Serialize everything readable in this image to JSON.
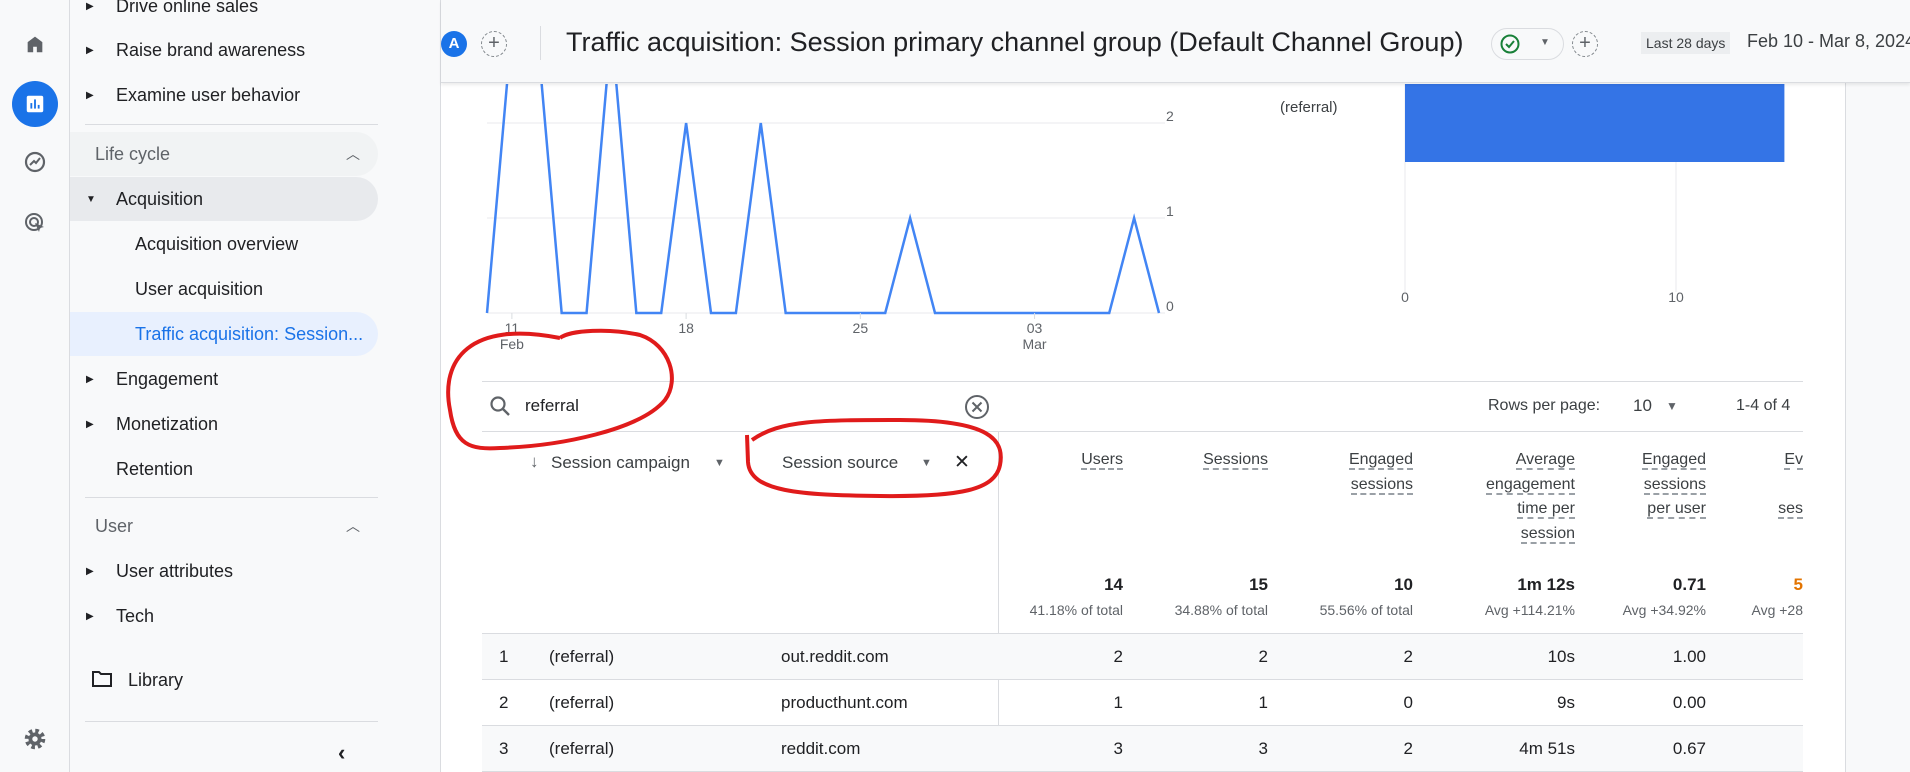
{
  "rail": {
    "icons": [
      "home-icon",
      "reports-icon",
      "explore-icon",
      "advertising-icon",
      "settings-icon"
    ],
    "accent": "#1a73e8"
  },
  "sidebar": {
    "items_top": [
      {
        "label": "Drive online sales"
      },
      {
        "label": "Raise brand awareness"
      },
      {
        "label": "Examine user behavior"
      }
    ],
    "lifecycle": {
      "label": "Life cycle",
      "acquisition": "Acquisition",
      "sub": [
        "Acquisition overview",
        "User acquisition",
        "Traffic acquisition: Session..."
      ],
      "items": [
        "Engagement",
        "Monetization"
      ],
      "retention": "Retention"
    },
    "user": {
      "label": "User",
      "items": [
        "User attributes",
        "Tech"
      ]
    },
    "library": "Library"
  },
  "header": {
    "avatar": "A",
    "title": "Traffic acquisition: Session primary channel group (Default Channel Group)",
    "date_chip": "Last 28 days",
    "date_range": "Feb 10 - Mar 8, 2024"
  },
  "chart_data": [
    {
      "type": "line",
      "x_start": "2024-02-10",
      "x_end": "2024-03-08",
      "values": [
        0,
        3,
        3,
        0,
        0,
        3,
        0,
        0,
        2,
        0,
        0,
        2,
        0,
        0,
        0,
        0,
        0,
        1,
        0,
        0,
        0,
        0,
        0,
        0,
        0,
        0,
        1,
        0
      ],
      "x_ticks": [
        {
          "day": 1,
          "label": "11",
          "sub": "Feb"
        },
        {
          "day": 8,
          "label": "18"
        },
        {
          "day": 15,
          "label": "25"
        },
        {
          "day": 22,
          "label": "03",
          "sub": "Mar"
        }
      ],
      "y_ticks": [
        "0",
        "1",
        "2"
      ],
      "ylim_visible": [
        0,
        2.4
      ],
      "color": "#4285f4",
      "grid": true
    },
    {
      "type": "bar",
      "orientation": "horizontal",
      "categories": [
        "(referral)"
      ],
      "values": [
        14
      ],
      "x_ticks": [
        "0",
        "10"
      ],
      "color": "#3474e6",
      "grid": true
    }
  ],
  "table": {
    "search_value": "referral",
    "rows_per_page_label": "Rows per page:",
    "rows_per_page": "10",
    "pagination": "1-4 of 4",
    "dimensions": [
      "Session campaign",
      "Session source"
    ],
    "metrics": [
      {
        "lines": [
          "Users"
        ],
        "total": "14",
        "sub": "41.18% of total"
      },
      {
        "lines": [
          "Sessions"
        ],
        "total": "15",
        "sub": "34.88% of total"
      },
      {
        "lines": [
          "Engaged",
          "sessions"
        ],
        "total": "10",
        "sub": "55.56% of total"
      },
      {
        "lines": [
          "Average",
          "engagement",
          "time per",
          "session"
        ],
        "total": "1m 12s",
        "sub": "Avg +114.21%"
      },
      {
        "lines": [
          "Engaged",
          "sessions",
          "per user"
        ],
        "total": "0.71",
        "sub": "Avg +34.92%"
      },
      {
        "lines": [
          "Ev",
          "",
          "ses"
        ],
        "total": "5",
        "sub": "Avg +28"
      }
    ],
    "rows": [
      {
        "rank": "1",
        "campaign": "(referral)",
        "source": "out.reddit.com",
        "values": [
          "2",
          "2",
          "2",
          "10s",
          "1.00"
        ]
      },
      {
        "rank": "2",
        "campaign": "(referral)",
        "source": "producthunt.com",
        "values": [
          "1",
          "1",
          "0",
          "9s",
          "0.00"
        ]
      },
      {
        "rank": "3",
        "campaign": "(referral)",
        "source": "reddit.com",
        "values": [
          "3",
          "3",
          "2",
          "4m 51s",
          "0.67"
        ]
      }
    ]
  },
  "annotations": {
    "color": "#e01b1b"
  }
}
